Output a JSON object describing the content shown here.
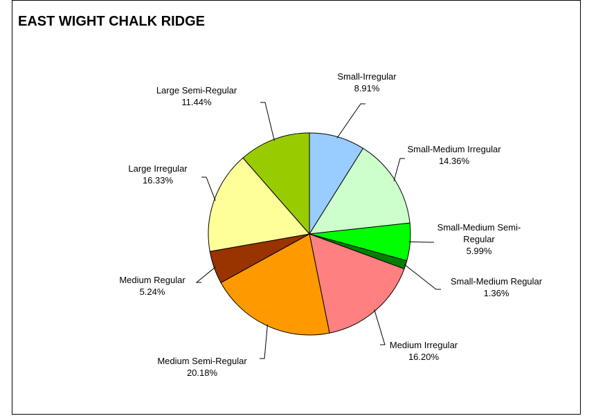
{
  "chart_data": {
    "type": "pie",
    "title": "EAST WIGHT CHALK RIDGE",
    "categories": [
      "Small-Irregular",
      "Small-Medium Irregular",
      "Small-Medium Semi-Regular",
      "Small-Medium Regular",
      "Medium Irregular",
      "Medium Semi-Regular",
      "Medium Regular",
      "Large Irregular",
      "Large Semi-Regular"
    ],
    "values": [
      8.91,
      14.36,
      5.99,
      1.36,
      16.2,
      20.18,
      5.24,
      16.33,
      11.44
    ],
    "value_labels": [
      "8.91%",
      "14.36%",
      "5.99%",
      "1.36%",
      "16.20%",
      "20.18%",
      "5.24%",
      "16.33%",
      "11.44%"
    ],
    "colors": [
      "#99CCFF",
      "#CCFFCC",
      "#00FF00",
      "#008000",
      "#FF8080",
      "#FF9900",
      "#993300",
      "#FFFF99",
      "#99CC00"
    ]
  }
}
